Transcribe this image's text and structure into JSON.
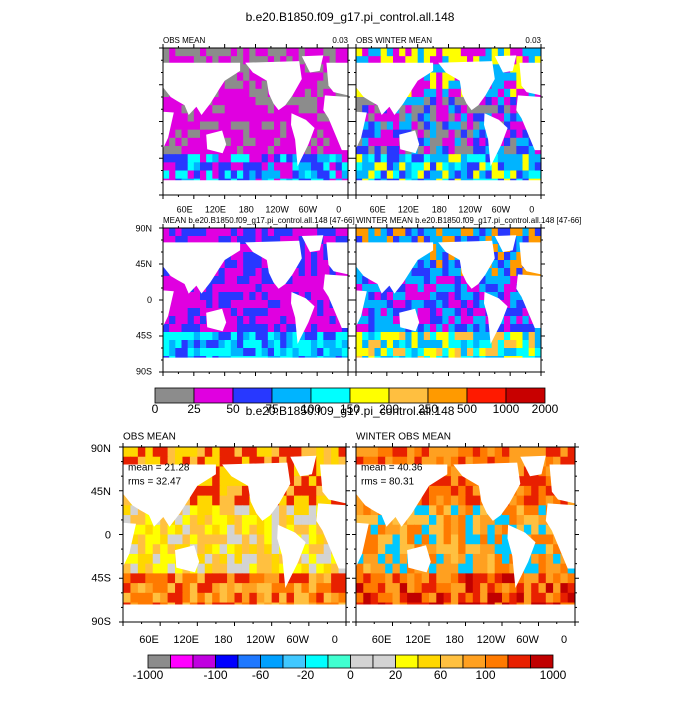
{
  "figure_title": "b.e20.B1850.f09_g17.pi_control.all.148",
  "top_panels": [
    {
      "title": "OBS MEAN",
      "corner_label": "0.03"
    },
    {
      "title": "OBS WINTER MEAN",
      "corner_label": "0.03"
    },
    {
      "title": "MEAN b.e20.B1850.f09_g17.pi_control.all.148 [47-66]"
    },
    {
      "title": "WINTER MEAN b.e20.B1850.f09_g17.pi_control.all.148 [47-66]"
    }
  ],
  "top_x_labels": [
    "60E",
    "120E",
    "180",
    "120W",
    "60W",
    "0"
  ],
  "top_y_labels": [
    "90N",
    "45N",
    "0",
    "45S",
    "90S"
  ],
  "top_colorbar": {
    "labels": [
      "0",
      "25",
      "50",
      "75",
      "100",
      "150",
      "200",
      "250",
      "500",
      "1000",
      "2000"
    ],
    "colors": [
      "#8c8c8c",
      "#e000e0",
      "#2838ff",
      "#00b4ff",
      "#00ffff",
      "#ffff00",
      "#ffbf40",
      "#ff9a00",
      "#ff1a00",
      "#c80000"
    ]
  },
  "bottom_title": "b.e20.B1850.f09_g17.pi_control.all.148",
  "bottom_panels": [
    {
      "title": "OBS MEAN",
      "stats": [
        "mean = 21.28",
        "rms = 32.47"
      ]
    },
    {
      "title": "WINTER OBS MEAN",
      "stats": [
        "mean = 40.36",
        "rms = 80.31"
      ]
    }
  ],
  "bottom_x_labels": [
    "60E",
    "120E",
    "180",
    "120W",
    "60W",
    "0"
  ],
  "bottom_y_labels": [
    "90N",
    "45N",
    "0",
    "45S",
    "90S"
  ],
  "bottom_colorbar": {
    "labels": [
      "-1000",
      "-100",
      "-60",
      "-20",
      "0",
      "20",
      "60",
      "100",
      "1000"
    ],
    "colors": [
      "#8c8c8c",
      "#ff00ff",
      "#c000e0",
      "#0000ff",
      "#1e78ff",
      "#00a0ff",
      "#40c8ff",
      "#00ffff",
      "#40ffd0",
      "#d3d3d3",
      "#d3d3d3",
      "#ffff00",
      "#ffd700",
      "#ffc040",
      "#ffa020",
      "#ff7a00",
      "#e82000",
      "#c00000"
    ]
  }
}
